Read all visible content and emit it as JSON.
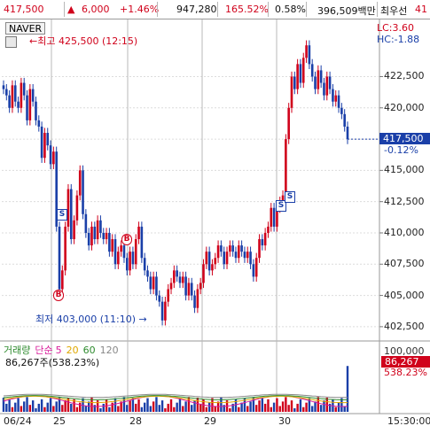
{
  "ticker_bar": {
    "price": "417,500",
    "change": "6,000",
    "change_pct": "+1.46%",
    "volume": "947,280",
    "volume_pct": "165.52%",
    "turnover_pct": "0.58%",
    "amount": "396,509백만",
    "priority_label": "최우선",
    "priority_value": "41"
  },
  "chart": {
    "symbol": "NAVER",
    "high_label": "최고 425,500 (12:15)",
    "low_label": "최저 403,000 (11:10)",
    "lc_label": "LC:3.60",
    "hc_label": "HC:-1.88",
    "current_price": "417,500",
    "current_pct": "-0.12%",
    "y_ticks": [
      "422,500",
      "420,000",
      "417,500",
      "415,000",
      "412,500",
      "410,000",
      "407,500",
      "405,000",
      "402,500"
    ],
    "x_ticks": [
      "06/24",
      "25",
      "28",
      "29",
      "30"
    ],
    "time_label": "15:30:00",
    "signals": [
      {
        "text": "S",
        "kind": "sell"
      },
      {
        "text": "B",
        "kind": "buy"
      },
      {
        "text": "B",
        "kind": "buy"
      },
      {
        "text": "S",
        "kind": "sell"
      },
      {
        "text": "S",
        "kind": "sell"
      }
    ]
  },
  "volume_panel": {
    "title": "거래량",
    "ma_label": "단순",
    "ma_periods": [
      "5",
      "20",
      "60",
      "120"
    ],
    "value_text": "86,267주(538.23%)",
    "max_label": "100,000",
    "current_value": "86,267",
    "current_pct": "538.23%"
  },
  "colors": {
    "up": "#d0021b",
    "down": "#1a3fa8",
    "ma5": "#d81b9a",
    "ma20": "#e0a800",
    "ma60": "#2e8b2e",
    "ma120": "#888888"
  },
  "chart_data": {
    "type": "candlestick",
    "symbol": "NAVER",
    "y_range": [
      401500,
      426500
    ],
    "days": [
      "06/24",
      "25",
      "28",
      "29",
      "30"
    ],
    "close_series": [
      421500,
      421000,
      420000,
      421800,
      420500,
      420000,
      422000,
      421000,
      419000,
      421500,
      420500,
      419000,
      418500,
      416000,
      418000,
      417000,
      415500,
      416500,
      410500,
      405500,
      407000,
      410500,
      413500,
      409500,
      411000,
      413000,
      415000,
      411500,
      410000,
      409000,
      410500,
      409500,
      411000,
      410000,
      409500,
      410000,
      408500,
      409500,
      407500,
      408500,
      409000,
      408000,
      407000,
      408500,
      407500,
      409500,
      410500,
      408000,
      407000,
      406500,
      405500,
      406500,
      405000,
      404500,
      403000,
      404500,
      405500,
      406000,
      407000,
      406500,
      406000,
      406500,
      405000,
      406000,
      405000,
      404000,
      405500,
      406000,
      407500,
      408500,
      407000,
      407500,
      408000,
      409000,
      408500,
      407500,
      408500,
      409000,
      408500,
      408000,
      409000,
      408500,
      408000,
      408500,
      407500,
      406500,
      408000,
      409500,
      409000,
      410000,
      410500,
      412000,
      410500,
      412000,
      412500,
      413000,
      417500,
      420000,
      422500,
      421500,
      423500,
      422000,
      424000,
      425000,
      423500,
      422500,
      421500,
      423000,
      422000,
      421000,
      422500,
      421500,
      420500,
      421000,
      420000,
      419500,
      418500,
      417500
    ],
    "volume_max": 100000,
    "volume_last": 86267
  }
}
